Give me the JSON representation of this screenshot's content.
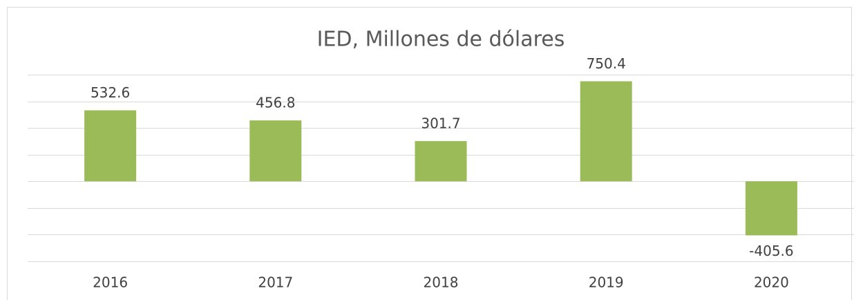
{
  "chart_data": {
    "type": "bar",
    "title": "IED, Millones de dólares",
    "categories": [
      "2016",
      "2017",
      "2018",
      "2019",
      "2020"
    ],
    "values": [
      532.6,
      456.8,
      301.7,
      750.4,
      -405.6
    ],
    "color": "#9bbb59",
    "ylim": [
      -600,
      800
    ],
    "yticks": [
      -600,
      -400,
      -200,
      0,
      200,
      400,
      600,
      800
    ],
    "grid": true
  }
}
